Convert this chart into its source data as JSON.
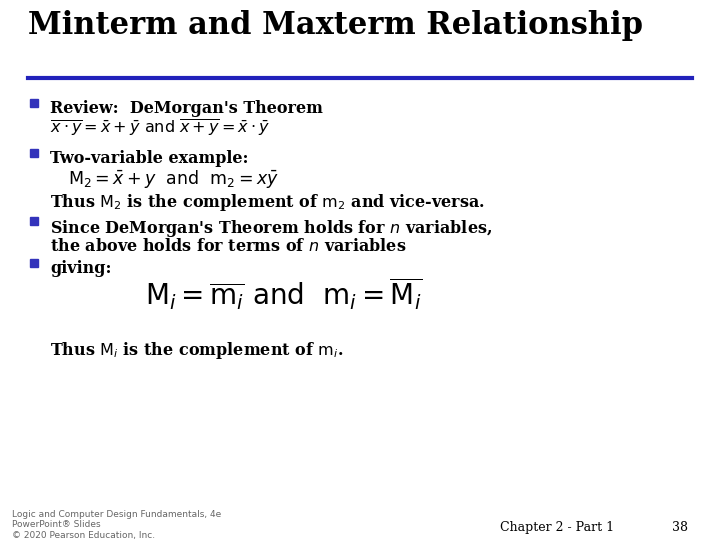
{
  "title": "Minterm and Maxterm Relationship",
  "title_color": "#000000",
  "title_fontsize": 22,
  "bg_color": "#ffffff",
  "rule_color": "#2222bb",
  "bullet_color": "#3333bb",
  "body_color": "#000000",
  "footer_left": "Logic and Computer Design Fundamentals, 4e\nPowerPoint® Slides\n© 2020 Pearson Education, Inc.",
  "footer_right_1": "Chapter 2 - Part 1",
  "footer_right_2": "38",
  "footer_fontsize": 6.5,
  "chapter_fontsize": 9,
  "body_fontsize": 11.5,
  "eq_fontsize": 11.5,
  "big_eq_fontsize": 20
}
